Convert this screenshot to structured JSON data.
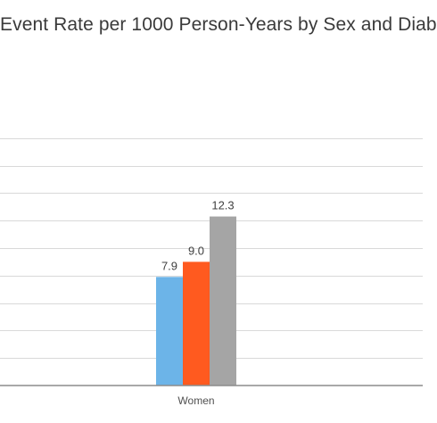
{
  "chart_data": {
    "type": "bar",
    "title": "Event Rate per 1000 Person-Years by Sex and Diab",
    "categories": [
      "Women"
    ],
    "series": [
      {
        "values": [
          7.9
        ],
        "color": "#6cb4e8"
      },
      {
        "values": [
          9.0
        ],
        "color": "#ff5a1f"
      },
      {
        "values": [
          12.3
        ],
        "color": "#a5a5a5"
      }
    ],
    "data_labels": [
      "7.9",
      "9.0",
      "12.3"
    ],
    "ylim": [
      0,
      18
    ],
    "grid": true,
    "legend": "none"
  }
}
